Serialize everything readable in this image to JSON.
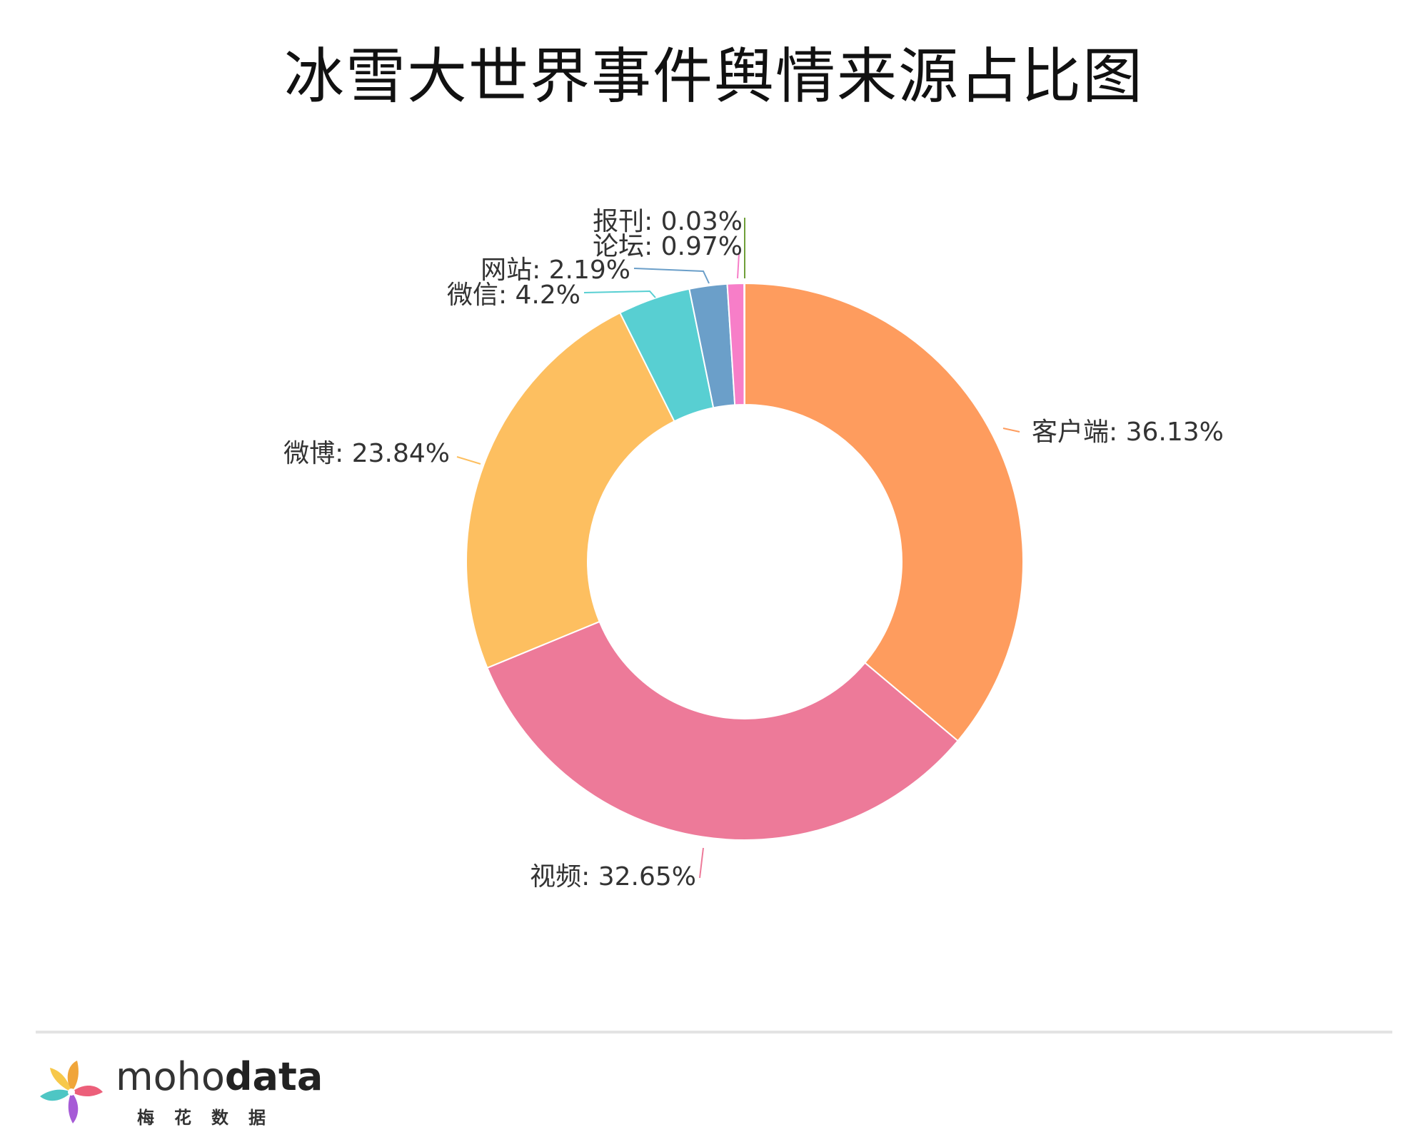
{
  "chart_data": {
    "type": "pie",
    "title": "冰雪大世界事件舆情来源占比图",
    "donut": true,
    "slices": [
      {
        "name": "客户端",
        "value": 36.13,
        "label": "客户端: 36.13%",
        "color": "#fe9c5e"
      },
      {
        "name": "视频",
        "value": 32.65,
        "label": "视频: 32.65%",
        "color": "#ed7a99"
      },
      {
        "name": "微博",
        "value": 23.84,
        "label": "微博: 23.84%",
        "color": "#fdbf60"
      },
      {
        "name": "微信",
        "value": 4.2,
        "label": "微信: 4.2%",
        "color": "#58cfd2"
      },
      {
        "name": "网站",
        "value": 2.19,
        "label": "网站: 2.19%",
        "color": "#6b9fc9"
      },
      {
        "name": "论坛",
        "value": 0.97,
        "label": "论坛: 0.97%",
        "color": "#f77ec8"
      },
      {
        "name": "报刊",
        "value": 0.03,
        "label": "报刊: 0.03%",
        "color": "#6f9f39"
      }
    ]
  },
  "footer": {
    "brand_light": "moho",
    "brand_bold": "data",
    "brand_cn": "梅花数据"
  }
}
